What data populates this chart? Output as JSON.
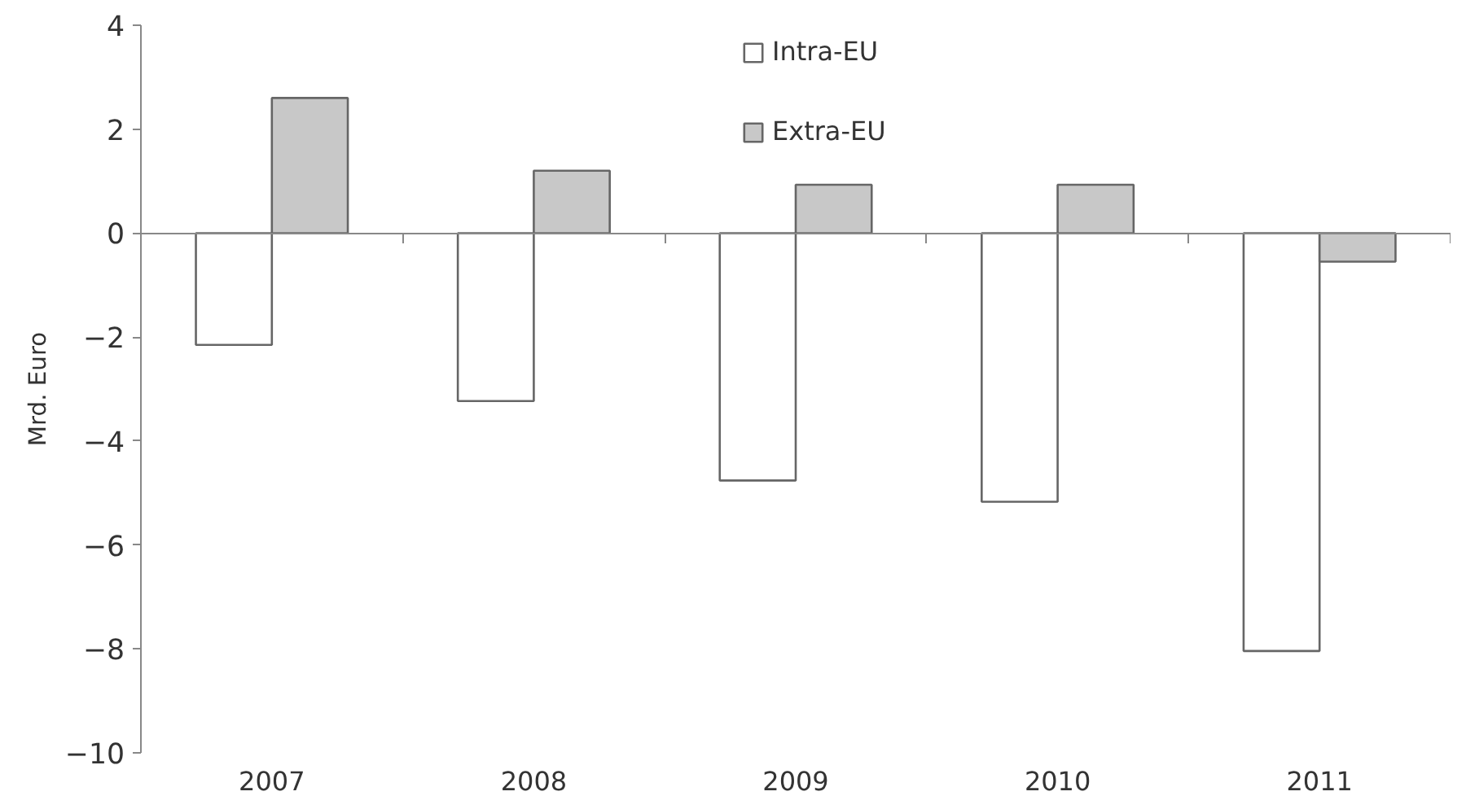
{
  "chart_data": {
    "type": "bar",
    "ylabel": "Mrd. Euro",
    "categories": [
      "2007",
      "2008",
      "2009",
      "2010",
      "2011"
    ],
    "series": [
      {
        "name": "Intra-EU",
        "color": "#ffffff",
        "values": [
          -2.15,
          -3.23,
          -4.76,
          -5.17,
          -8.04
        ]
      },
      {
        "name": "Extra-EU",
        "color": "#c8c8c8",
        "values": [
          2.6,
          1.2,
          0.93,
          0.93,
          -0.55
        ]
      }
    ],
    "ylim": [
      -10,
      4
    ],
    "yticks": [
      -10,
      -8,
      -6,
      -4,
      -2,
      0,
      2,
      4
    ],
    "legend": "top"
  }
}
